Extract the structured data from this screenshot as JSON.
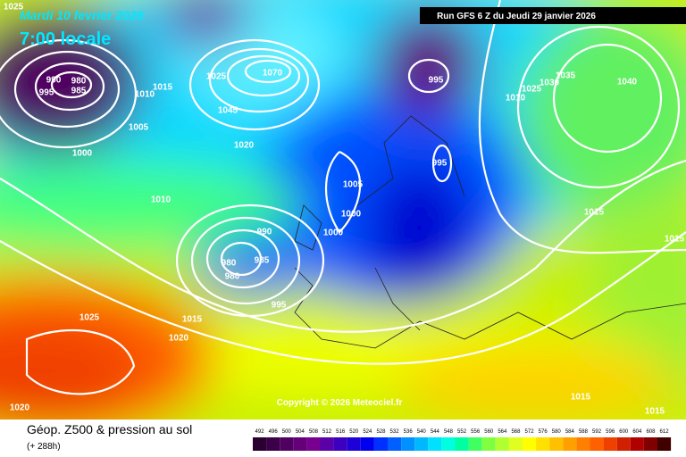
{
  "header": {
    "date": "Mardi 10 fevrier 2026",
    "time": "7:00 locale",
    "run": "Run GFS 6 Z du Jeudi 29 janvier 2026"
  },
  "copyright": "Copyright © 2026 Meteociel.fr",
  "footer": {
    "title": "Géop. Z500 & pression au sol",
    "lead": "(+ 288h)"
  },
  "isobar_labels": [
    "1025",
    "990",
    "980",
    "985",
    "995",
    "1015",
    "1010",
    "1005",
    "1000",
    "1025",
    "1070",
    "1045",
    "1020",
    "1010",
    "990",
    "980",
    "985",
    "980",
    "995",
    "1005",
    "1000",
    "1000",
    "995",
    "995",
    "1010",
    "1025",
    "1030",
    "1035",
    "1040",
    "1015",
    "1015",
    "1025",
    "1015",
    "1020",
    "1020",
    "1015",
    "1015"
  ],
  "colorbar": {
    "ticks": [
      492,
      496,
      500,
      504,
      508,
      512,
      516,
      520,
      524,
      528,
      532,
      536,
      540,
      544,
      548,
      552,
      556,
      560,
      564,
      568,
      572,
      576,
      580,
      584,
      588,
      592,
      596,
      600,
      604,
      608,
      612
    ],
    "colors": [
      "#2a0030",
      "#3c0048",
      "#500060",
      "#640078",
      "#780090",
      "#5a00a8",
      "#3c00c0",
      "#1e00d8",
      "#0000f0",
      "#0030ff",
      "#0060ff",
      "#0090ff",
      "#00b8ff",
      "#00e0ff",
      "#00ffe0",
      "#00ffa0",
      "#40ff60",
      "#80ff40",
      "#b0ff30",
      "#e0ff20",
      "#ffff00",
      "#ffe000",
      "#ffc000",
      "#ffa000",
      "#ff8000",
      "#ff6000",
      "#f04000",
      "#d02000",
      "#b00000",
      "#800000",
      "#400000"
    ]
  }
}
